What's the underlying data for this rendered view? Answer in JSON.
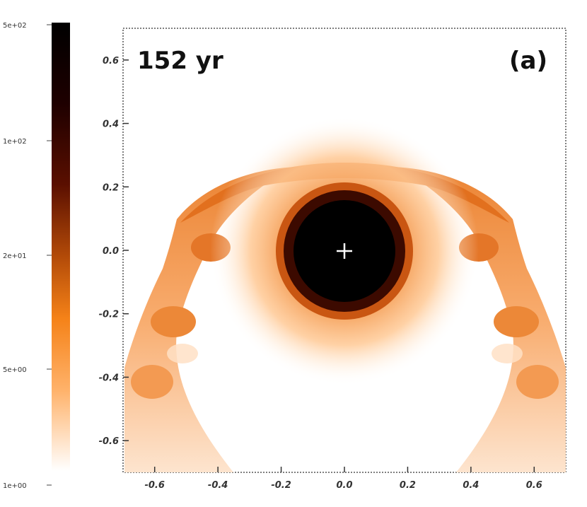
{
  "chart_data": {
    "type": "heatmap",
    "time_label": "152 yr",
    "panel_label": "(a)",
    "xlim": [
      -0.7,
      0.7
    ],
    "ylim": [
      -0.7,
      0.7
    ],
    "x_ticks": [
      "-0.6",
      "-0.4",
      "-0.2",
      "0.0",
      "0.2",
      "0.4",
      "0.6"
    ],
    "y_ticks": [
      "0.4",
      "0.2",
      "0.0",
      "-0.2",
      "-0.4",
      "-0.6"
    ],
    "y_tick_values": [
      0.4,
      0.2,
      0.0,
      -0.2,
      -0.4,
      -0.6
    ],
    "x_tick_values": [
      -0.6,
      -0.4,
      -0.2,
      0.0,
      0.2,
      0.4,
      0.6
    ],
    "top_y_tick": {
      "label": "0.6",
      "value": 0.6
    },
    "colorbar": {
      "scale": "log",
      "ticks": [
        "5e+02",
        "1e+02",
        "2e+01",
        "5e+00",
        "1e+00"
      ],
      "colors": [
        "#000000",
        "#3a0000",
        "#8a2400",
        "#e06a10",
        "#ff8c1e",
        "#ffb46a",
        "#ffffff"
      ]
    },
    "central_source": {
      "x": 0.0,
      "y": 0.0,
      "marker": "+"
    },
    "colors": {
      "core": "#000000",
      "shell": "#e87a22",
      "halo": "#ff9a40",
      "ring": "#3c0a00"
    }
  }
}
